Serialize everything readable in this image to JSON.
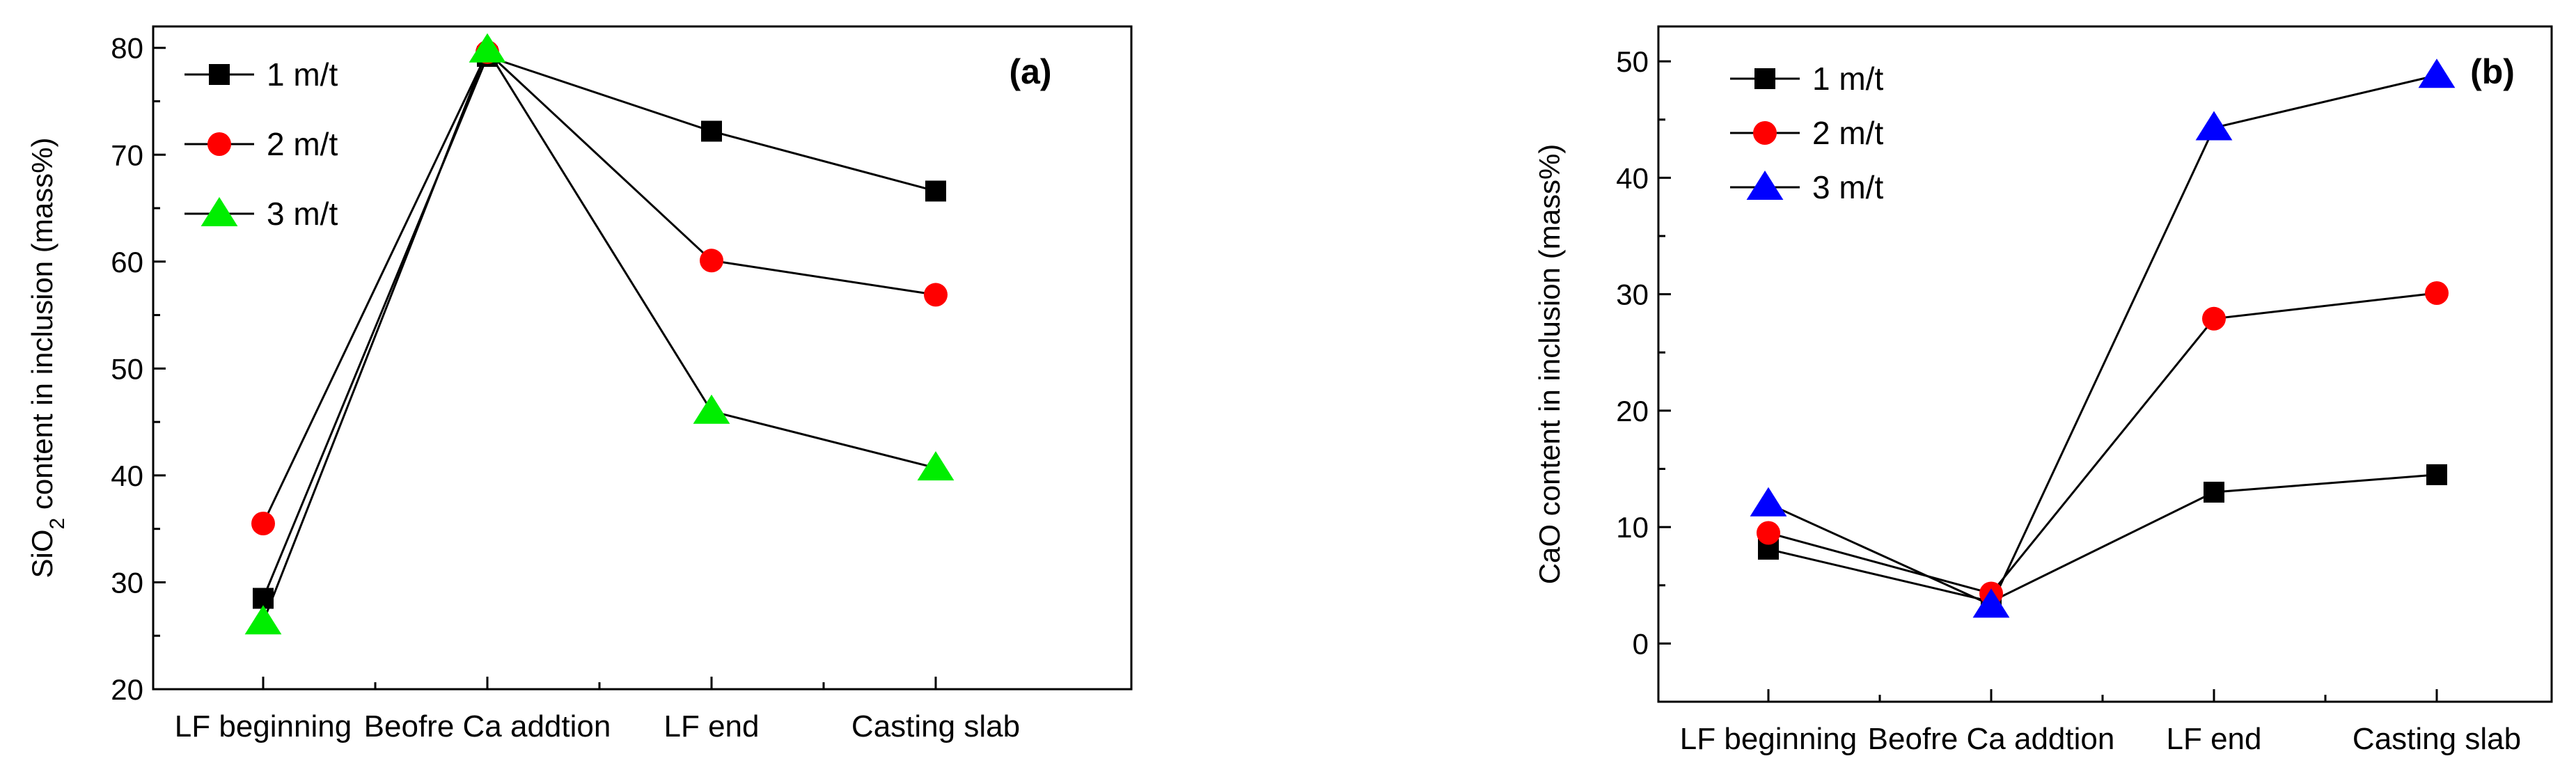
{
  "chart_data": [
    {
      "type": "line",
      "panel_label": "(a)",
      "title": "",
      "xlabel": "",
      "ylabel_prefix": "SiO",
      "ylabel_sub": "2",
      "ylabel_suffix": " content in inclusion (mass%)",
      "categories": [
        "LF beginning",
        "Beofre Ca addtion",
        "LF end",
        "Casting slab"
      ],
      "ylim": [
        20,
        82
      ],
      "yticks": [
        20,
        30,
        40,
        50,
        60,
        70,
        80
      ],
      "legend_position": "top-left",
      "series": [
        {
          "name": "1 m/t",
          "marker": "square",
          "color": "#000000",
          "values": [
            28.5,
            79.2,
            72.2,
            66.6
          ]
        },
        {
          "name": "2 m/t",
          "marker": "circle",
          "color": "#ff0000",
          "values": [
            35.5,
            79.6,
            60.1,
            56.9
          ]
        },
        {
          "name": "3 m/t",
          "marker": "triangle",
          "color": "#00ee00",
          "values": [
            26.3,
            79.8,
            46.0,
            40.7
          ]
        }
      ]
    },
    {
      "type": "line",
      "panel_label": "(b)",
      "title": "",
      "xlabel": "",
      "ylabel_prefix": "CaO content in inclusion (mass%)",
      "ylabel_sub": "",
      "ylabel_suffix": "",
      "categories": [
        "LF beginning",
        "Beofre Ca addtion",
        "LF end",
        "Casting slab"
      ],
      "ylim": [
        -5,
        53
      ],
      "yticks": [
        0,
        10,
        20,
        30,
        40,
        50
      ],
      "legend_position": "top-left",
      "series": [
        {
          "name": "1 m/t",
          "marker": "square",
          "color": "#000000",
          "values": [
            8.1,
            3.6,
            13.0,
            14.5
          ]
        },
        {
          "name": "2 m/t",
          "marker": "circle",
          "color": "#ff0000",
          "values": [
            9.5,
            4.3,
            27.9,
            30.1
          ]
        },
        {
          "name": "3 m/t",
          "marker": "triangle",
          "color": "#0000ff",
          "values": [
            12.0,
            3.3,
            44.3,
            48.8
          ]
        }
      ]
    }
  ]
}
